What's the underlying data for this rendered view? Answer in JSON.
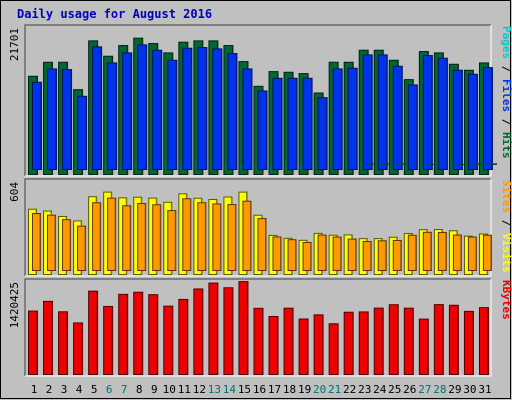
{
  "colors": {
    "background": "#c0c0c0",
    "border_light": "#ffffff",
    "border_dark": "#404040",
    "title": "#0000c0",
    "hits": "#006633",
    "files": "#0033ee",
    "pages": "#00cccc",
    "visits": "#ffff00",
    "sites": "#ff9900",
    "kbytes": "#ee0000",
    "weekday_label": "#000000",
    "weekend_label": "#007070"
  },
  "chart_data": [
    {
      "type": "bar",
      "title": "Daily usage for August 2016",
      "x": [
        "1",
        "2",
        "3",
        "4",
        "5",
        "6",
        "7",
        "8",
        "9",
        "10",
        "11",
        "12",
        "13",
        "14",
        "15",
        "16",
        "17",
        "18",
        "19",
        "20",
        "21",
        "22",
        "23",
        "24",
        "25",
        "26",
        "27",
        "28",
        "29",
        "30",
        "31"
      ],
      "weekend_days": [
        "6",
        "7",
        "13",
        "14",
        "20",
        "21",
        "27",
        "28"
      ],
      "ymax_label": "21701",
      "ylim": [
        0,
        21701
      ],
      "axis_legend": [
        "Pages",
        "Files",
        "Hits"
      ],
      "series": [
        {
          "name": "Hits",
          "color": "hits",
          "values": [
            14700,
            16800,
            16800,
            12700,
            20000,
            17700,
            19300,
            20400,
            19600,
            18200,
            19800,
            20000,
            20000,
            19300,
            16900,
            13200,
            15400,
            15300,
            15100,
            12200,
            16800,
            16800,
            18600,
            18600,
            17100,
            14200,
            18400,
            18200,
            16500,
            15600,
            16700
          ]
        },
        {
          "name": "Files",
          "color": "files",
          "values": [
            13800,
            15800,
            15700,
            11700,
            19100,
            16700,
            18200,
            19400,
            18600,
            17100,
            18900,
            19000,
            18800,
            18100,
            15800,
            12500,
            14400,
            14400,
            14400,
            11500,
            15800,
            15900,
            17900,
            17900,
            16200,
            13400,
            17800,
            17400,
            15600,
            15000,
            16000
          ]
        },
        {
          "name": "Pages",
          "color": "pages",
          "values": [
            700,
            850,
            800,
            700,
            950,
            900,
            950,
            950,
            950,
            800,
            1000,
            1000,
            950,
            950,
            900,
            450,
            700,
            750,
            1300,
            1300,
            1300,
            1450,
            1550,
            1550,
            1550,
            1450,
            1500,
            1450,
            1500,
            1600,
            1600
          ]
        }
      ]
    },
    {
      "type": "bar",
      "ymax_label": "604",
      "ylim": [
        0,
        604
      ],
      "axis_legend": [
        "Sites",
        "Visits"
      ],
      "series": [
        {
          "name": "Visits",
          "color": "visits",
          "values": [
            424,
            412,
            377,
            348,
            505,
            535,
            498,
            502,
            496,
            469,
            524,
            495,
            487,
            503,
            535,
            385,
            254,
            235,
            222,
            267,
            255,
            257,
            233,
            233,
            242,
            266,
            291,
            292,
            284,
            249,
            263
          ]
        },
        {
          "name": "Sites",
          "color": "sites",
          "values": [
            396,
            385,
            356,
            314,
            466,
            496,
            446,
            461,
            453,
            415,
            492,
            466,
            458,
            454,
            476,
            363,
            244,
            226,
            208,
            256,
            243,
            230,
            214,
            219,
            221,
            255,
            274,
            273,
            256,
            243,
            255
          ]
        }
      ]
    },
    {
      "type": "bar",
      "ymax_label": "1420425",
      "ylim": [
        0,
        1420425
      ],
      "axis_legend": [
        "KBytes"
      ],
      "series": [
        {
          "name": "KBytes",
          "color": "kbytes",
          "values": [
            990000,
            1142000,
            979000,
            805000,
            1301000,
            1062000,
            1251000,
            1284000,
            1246000,
            1067000,
            1172000,
            1335000,
            1427000,
            1354000,
            1450000,
            1033000,
            905000,
            1035000,
            866000,
            931000,
            792000,
            972000,
            977000,
            1036000,
            1089000,
            1035000,
            865000,
            1091000,
            1081000,
            985000,
            1044000
          ]
        }
      ]
    }
  ]
}
